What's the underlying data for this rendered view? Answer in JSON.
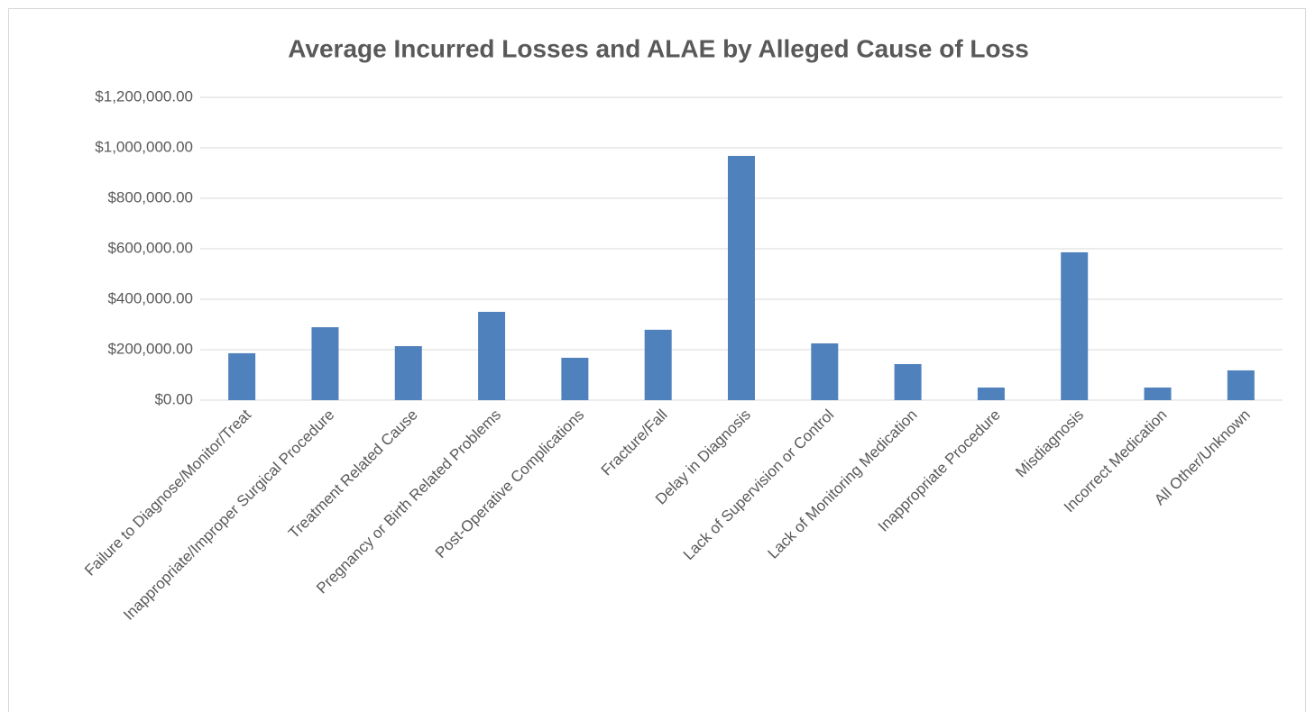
{
  "chart_data": {
    "type": "bar",
    "title": "Average Incurred Losses and ALAE by Alleged Cause of Loss",
    "categories": [
      "Failure to Diagnose/Monitor/Treat",
      "Inappropriate/Improper Surgical Procedure",
      "Treatment Related Cause",
      "Pregnancy or Birth Related Problems",
      "Post-Operative Complications",
      "Fracture/Fall",
      "Delay in Diagnosis",
      "Lack of Supervision or Control",
      "Lack of Monitoring Medication",
      "Inappropriate Procedure",
      "Misdiagnosis",
      "Incorrect Medication",
      "All Other/Unknown"
    ],
    "values": [
      186000,
      289000,
      214000,
      350000,
      168000,
      279000,
      968000,
      225000,
      143000,
      50000,
      586000,
      50000,
      118000
    ],
    "color": "#4f81bd",
    "ylim": [
      0,
      1200000
    ],
    "yticks": [
      {
        "value": 0,
        "label": "$0.00"
      },
      {
        "value": 200000,
        "label": "$200,000.00"
      },
      {
        "value": 400000,
        "label": "$400,000.00"
      },
      {
        "value": 600000,
        "label": "$600,000.00"
      },
      {
        "value": 800000,
        "label": "$800,000.00"
      },
      {
        "value": 1000000,
        "label": "$1,000,000.00"
      },
      {
        "value": 1200000,
        "label": "$1,200,000.00"
      }
    ],
    "grid": true
  }
}
